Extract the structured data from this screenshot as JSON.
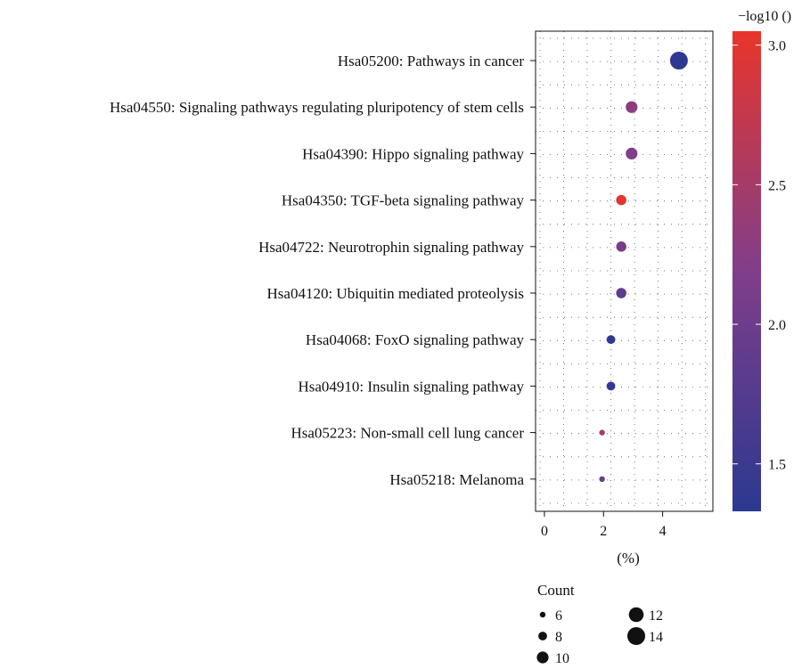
{
  "chart_data": {
    "type": "scatter",
    "title": "",
    "xlabel": "(%)",
    "ylabel": "",
    "xlim": [
      -0.3,
      5.7
    ],
    "x_ticks": [
      0,
      2,
      4
    ],
    "grid": true,
    "categories": [
      "Hsa05200: Pathways in cancer",
      "Hsa04550: Signaling pathways regulating pluripotency of stem cells",
      "Hsa04390: Hippo signaling pathway",
      "Hsa04350: TGF-beta signaling pathway",
      "Hsa04722: Neurotrophin signaling pathway",
      "Hsa04120: Ubiquitin mediated proteolysis",
      "Hsa04068: FoxO signaling pathway",
      "Hsa04910: Insulin signaling pathway",
      "Hsa05223: Non-small cell lung cancer",
      "Hsa05218: Melanoma"
    ],
    "points": [
      {
        "pathway": "Hsa05200: Pathways in cancer",
        "x": 4.55,
        "count": 14,
        "neglog10": 1.35
      },
      {
        "pathway": "Hsa04550: Signaling pathways regulating pluripotency of stem cells",
        "x": 2.95,
        "count": 10,
        "neglog10": 2.3
      },
      {
        "pathway": "Hsa04390: Hippo signaling pathway",
        "x": 2.95,
        "count": 10,
        "neglog10": 2.2
      },
      {
        "pathway": "Hsa04350: TGF-beta signaling pathway",
        "x": 2.6,
        "count": 9,
        "neglog10": 3.0
      },
      {
        "pathway": "Hsa04722: Neurotrophin signaling pathway",
        "x": 2.6,
        "count": 9,
        "neglog10": 2.1
      },
      {
        "pathway": "Hsa04120: Ubiquitin mediated proteolysis",
        "x": 2.6,
        "count": 9,
        "neglog10": 1.85
      },
      {
        "pathway": "Hsa04068: FoxO signaling pathway",
        "x": 2.25,
        "count": 8,
        "neglog10": 1.4
      },
      {
        "pathway": "Hsa04910: Insulin signaling pathway",
        "x": 2.25,
        "count": 8,
        "neglog10": 1.4
      },
      {
        "pathway": "Hsa05223: Non-small cell lung cancer",
        "x": 1.95,
        "count": 6,
        "neglog10": 2.5
      },
      {
        "pathway": "Hsa05218: Melanoma",
        "x": 1.95,
        "count": 6,
        "neglog10": 2.0
      }
    ],
    "colorbar": {
      "title": "−log10 ()",
      "range": [
        1.33,
        3.05
      ],
      "ticks": [
        1.5,
        2.0,
        2.5,
        3.0
      ],
      "tick_labels": [
        "1.5",
        "2.0",
        "2.5",
        "3.0"
      ],
      "low_color": "#2b3990",
      "high_color": "#e8352b"
    },
    "size_legend": {
      "title": "Count",
      "entries": [
        {
          "label": "6",
          "count": 6
        },
        {
          "label": "8",
          "count": 8
        },
        {
          "label": "10",
          "count": 10
        },
        {
          "label": "12",
          "count": 12
        },
        {
          "label": "14",
          "count": 14
        }
      ]
    }
  }
}
